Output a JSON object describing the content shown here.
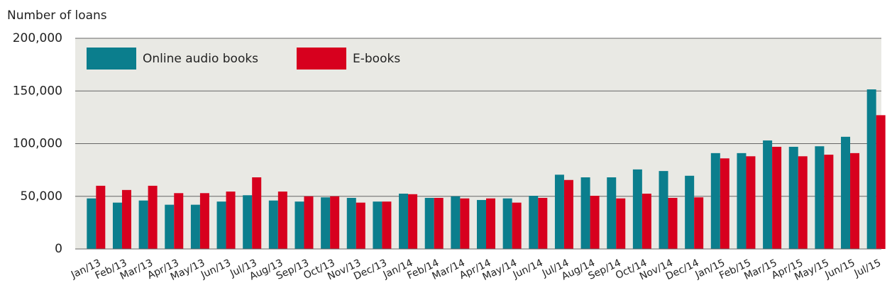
{
  "chart_data": {
    "type": "bar",
    "y_axis_label": "Number of loans",
    "categories": [
      "Jan/13",
      "Feb/13",
      "Mar/13",
      "Apr/13",
      "May/13",
      "Jun/13",
      "Jul/13",
      "Aug/13",
      "Sep/13",
      "Oct/13",
      "Nov/13",
      "Dec/13",
      "Jan/14",
      "Feb/14",
      "Mar/14",
      "Apr/14",
      "May/14",
      "Jun/14",
      "Jul/14",
      "Aug/14",
      "Sep/14",
      "Oct/14",
      "Nov/14",
      "Dec/14",
      "Jan/15",
      "Feb/15",
      "Mar/15",
      "Apr/15",
      "May/15",
      "Jun/15",
      "Jul/15"
    ],
    "series": [
      {
        "name": "Online audio books",
        "color": "#0b7e8d",
        "values": [
          48000,
          44000,
          46000,
          42000,
          42000,
          45000,
          51000,
          46000,
          45000,
          49000,
          48500,
          45000,
          52500,
          48500,
          50000,
          46500,
          48000,
          50500,
          70500,
          68000,
          68000,
          75500,
          74000,
          69500,
          91000,
          91000,
          103000,
          97000,
          97500,
          106500,
          151500
        ]
      },
      {
        "name": "E-books",
        "color": "#d7001e",
        "values": [
          60000,
          56000,
          60000,
          53000,
          53000,
          54500,
          68000,
          54500,
          50000,
          50000,
          44000,
          45000,
          52000,
          48500,
          48000,
          48000,
          44000,
          48500,
          65500,
          50500,
          48000,
          52500,
          48500,
          49000,
          86000,
          88000,
          97000,
          88000,
          89500,
          91000,
          127000
        ]
      }
    ],
    "ylim": [
      0,
      200000
    ],
    "yticks": [
      0,
      {
        "value": 50000,
        "label": "50,000"
      },
      {
        "value": 100000,
        "label": "100,000"
      },
      {
        "value": 150000,
        "label": "150,000"
      },
      {
        "value": 200000,
        "label": "200,000"
      }
    ],
    "grid": true,
    "legend": "top-left"
  }
}
